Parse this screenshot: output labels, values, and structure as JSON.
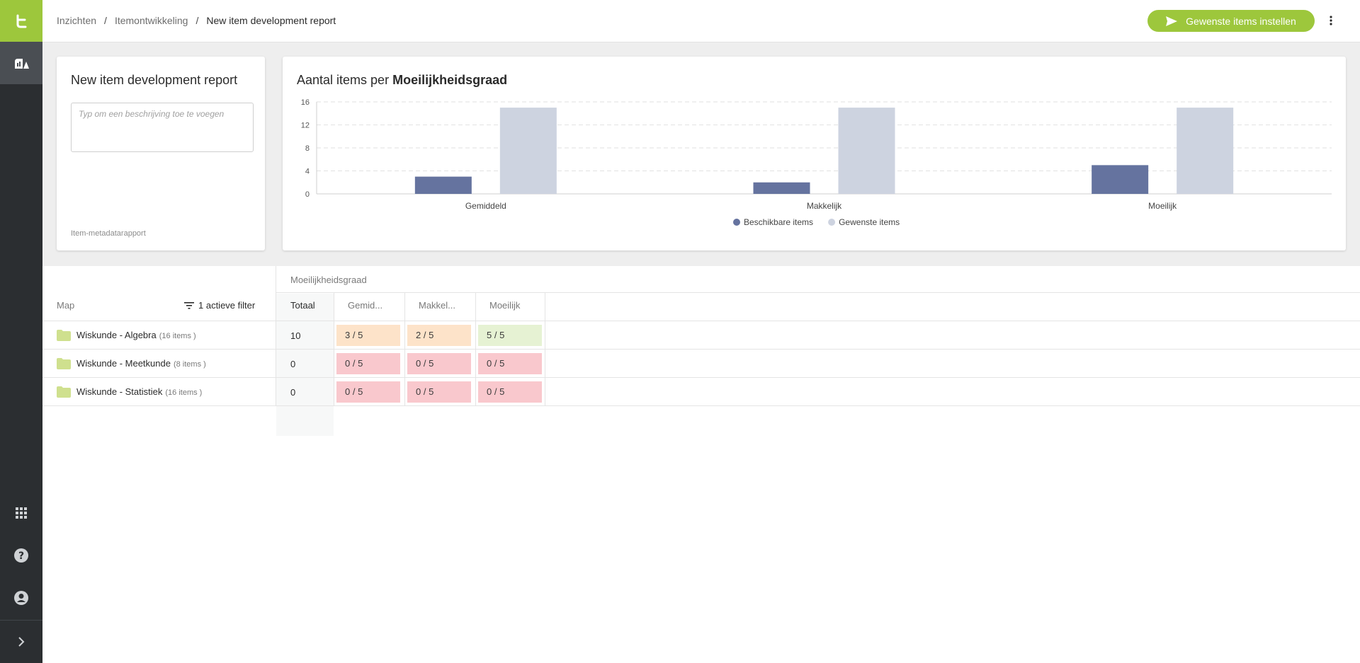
{
  "header": {
    "breadcrumbs": [
      "Inzichten",
      "Itemontwikkeling",
      "New item development report"
    ],
    "separator": "/",
    "primary_button": "Gewenste items instellen"
  },
  "sidebar": {
    "top_items": [
      {
        "icon": "logo-icon"
      },
      {
        "icon": "insights-icon"
      }
    ],
    "bottom_items": [
      {
        "icon": "apps-grid-icon"
      },
      {
        "icon": "help-icon"
      },
      {
        "icon": "account-icon"
      },
      {
        "icon": "expand-chevron-icon"
      }
    ]
  },
  "report_card": {
    "title": "New item development report",
    "description_placeholder": "Typ om een beschrijving toe te voegen",
    "footer": "Item-metadatarapport"
  },
  "chart_card": {
    "title_prefix": "Aantal items per",
    "title_bold": "Moeilijkheidsgraad"
  },
  "chart_data": {
    "type": "bar",
    "categories": [
      "Gemiddeld",
      "Makkelijk",
      "Moeilijk"
    ],
    "series": [
      {
        "name": "Beschikbare items",
        "values": [
          3,
          2,
          5
        ],
        "color": "#65739f"
      },
      {
        "name": "Gewenste items",
        "values": [
          15,
          15,
          15
        ],
        "color": "#cdd3e0"
      }
    ],
    "ylim": [
      0,
      16
    ],
    "yticks": [
      0,
      4,
      8,
      12,
      16
    ],
    "grid": true,
    "legend_position": "bottom-center"
  },
  "table": {
    "group_header": "Moeilijkheidsgraad",
    "map_header": "Map",
    "filter_label": "1 actieve filter",
    "columns": [
      "Totaal",
      "Gemid...",
      "Makkel...",
      "Moeilijk"
    ],
    "rows": [
      {
        "name": "Wiskunde - Algebra",
        "count": "(16 items )",
        "total": "10",
        "cells": [
          "3 / 5",
          "2 / 5",
          "5 / 5"
        ],
        "status": [
          "orange",
          "orange",
          "green"
        ]
      },
      {
        "name": "Wiskunde - Meetkunde",
        "count": "(8 items )",
        "total": "0",
        "cells": [
          "0 / 5",
          "0 / 5",
          "0 / 5"
        ],
        "status": [
          "red",
          "red",
          "red"
        ]
      },
      {
        "name": "Wiskunde - Statistiek",
        "count": "(16 items )",
        "total": "0",
        "cells": [
          "0 / 5",
          "0 / 5",
          "0 / 5"
        ],
        "status": [
          "red",
          "red",
          "red"
        ]
      }
    ]
  },
  "colors": {
    "accent": "#9dc73c",
    "sidebar": "#2b2e31",
    "cell_orange": "#fde3c9",
    "cell_green": "#e6f2d3",
    "cell_red": "#f9c8cd"
  }
}
